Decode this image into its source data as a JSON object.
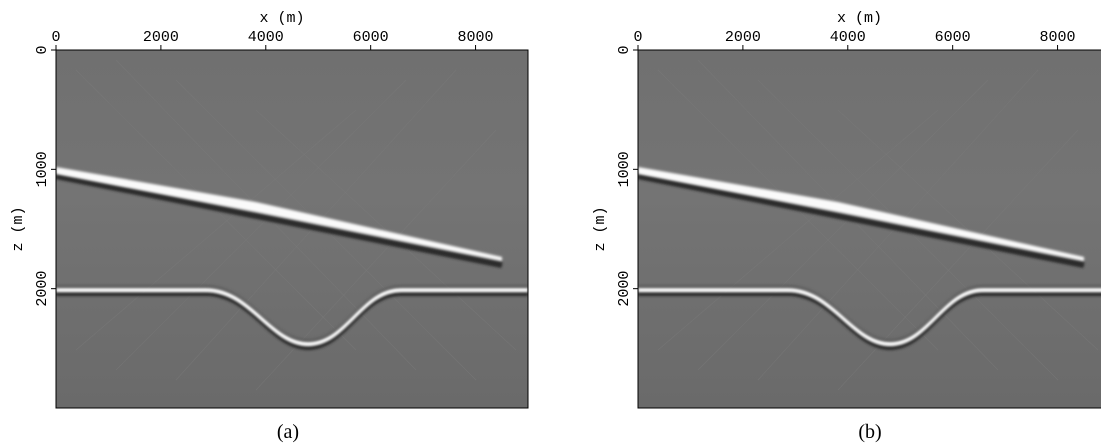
{
  "chart_data": [
    {
      "type": "image",
      "xlabel": "x (m)",
      "ylabel": "z (m)",
      "caption": "(a)",
      "xlim": [
        0,
        9000
      ],
      "xticks": [
        0,
        2000,
        4000,
        6000,
        8000
      ],
      "ylim": [
        0,
        3000
      ],
      "yticks": [
        0,
        1000,
        2000
      ]
    },
    {
      "type": "image",
      "xlabel": "x (m)",
      "ylabel": "z (m)",
      "caption": "(b)",
      "xlim": [
        0,
        9000
      ],
      "xticks": [
        0,
        2000,
        4000,
        6000,
        8000
      ],
      "ylim": [
        0,
        3000
      ],
      "yticks": [
        0,
        1000,
        2000
      ]
    }
  ]
}
